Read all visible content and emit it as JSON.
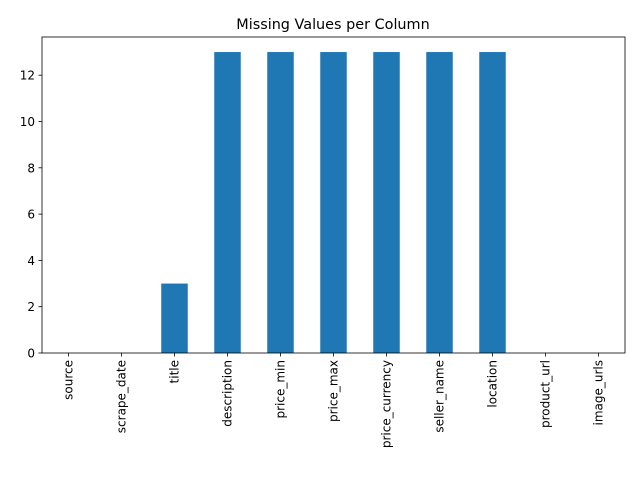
{
  "chart_data": {
    "type": "bar",
    "title": "Missing Values per Column",
    "xlabel": "",
    "ylabel": "",
    "categories": [
      "source",
      "scrape_date",
      "title",
      "description",
      "price_min",
      "price_max",
      "price_currency",
      "seller_name",
      "location",
      "product_url",
      "image_urls"
    ],
    "values": [
      0,
      0,
      3,
      13,
      13,
      13,
      13,
      13,
      13,
      0,
      0
    ],
    "ylim": [
      0,
      13.65
    ],
    "yticks": [
      0,
      2,
      4,
      6,
      8,
      10,
      12
    ],
    "grid": false,
    "legend": "none",
    "bar_color": "#1f77b4"
  }
}
